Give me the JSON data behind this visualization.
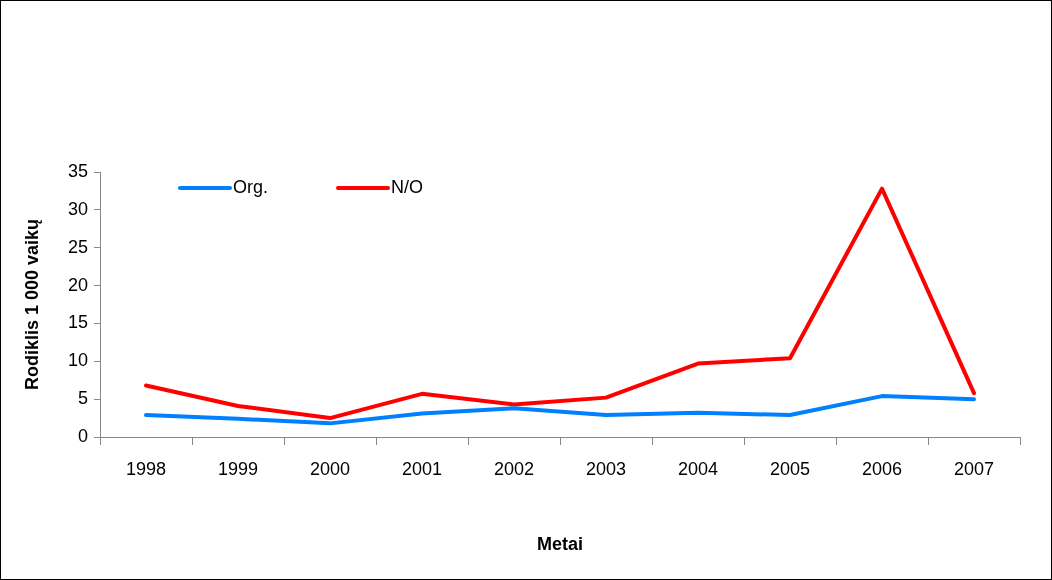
{
  "chart_data": {
    "type": "line",
    "xlabel": "Metai",
    "ylabel": "Rodiklis 1 000 vaikų",
    "categories": [
      "1998",
      "1999",
      "2000",
      "2001",
      "2002",
      "2003",
      "2004",
      "2005",
      "2006",
      "2007"
    ],
    "series": [
      {
        "name": "Org.",
        "color": "#0080ff",
        "values": [
          2.9,
          2.4,
          1.8,
          3.1,
          3.8,
          2.9,
          3.2,
          2.9,
          5.4,
          5.0
        ]
      },
      {
        "name": "N/O",
        "color": "#ff0000",
        "values": [
          6.8,
          4.1,
          2.5,
          5.7,
          4.3,
          5.2,
          9.7,
          10.4,
          32.8,
          5.8
        ]
      }
    ],
    "ylim": [
      0,
      35
    ],
    "yticks": [
      0,
      5,
      10,
      15,
      20,
      25,
      30,
      35
    ],
    "grid": false,
    "legend": "top left",
    "marker": "none",
    "line_style": "solid"
  }
}
